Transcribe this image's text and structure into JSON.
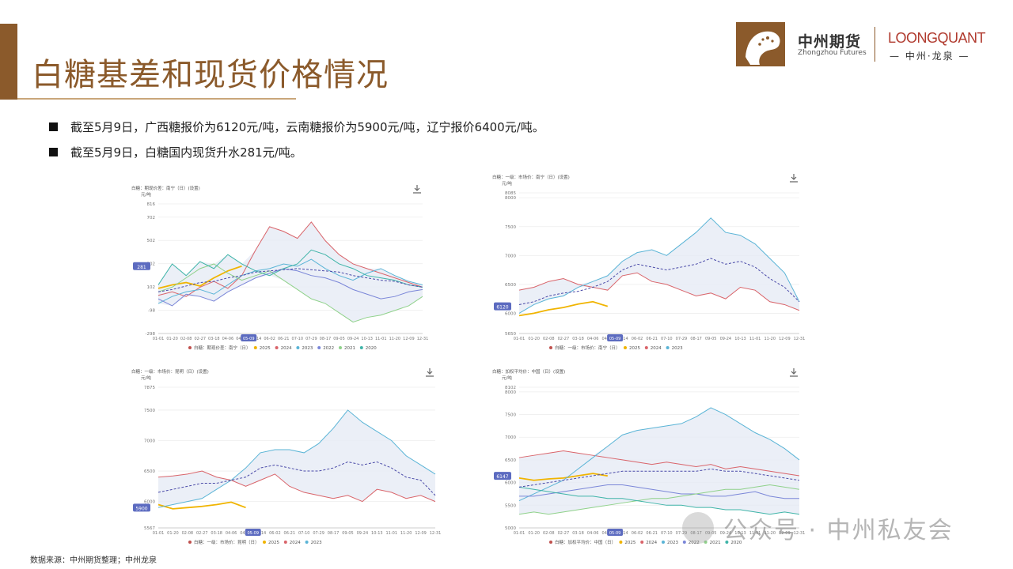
{
  "header": {
    "title": "白糖基差和现货价格情况",
    "logo_cn": "中州期货",
    "logo_en": "Zhongzhou Futures",
    "logo_lq": "LOONGQUANT",
    "logo_lq_sub": "— 中州·龙泉 —"
  },
  "bullets": [
    "截至5月9日，广西糖报价为6120元/吨，云南糖报价为5900元/吨，辽宁报价6400元/吨。",
    "截至5月9日，白糖国内现货升水281元/吨。"
  ],
  "source": "数据来源：中州期货整理；中州龙泉",
  "watermark": "公众号 · 中州私友会",
  "colors": {
    "brand": "#8b5a2b",
    "s2025": "#f0b400",
    "s2024": "#d9646a",
    "s2023": "#5ab4d6",
    "s2022": "#7a86d8",
    "s2021": "#8fd18a",
    "s2020": "#3fb4a8",
    "avg": "#4a4aa8",
    "band": "#e6ebf5"
  },
  "x_ticks": [
    "01-01",
    "01-20",
    "02-08",
    "02-27",
    "03-18",
    "04-06",
    "04-25",
    "05-14",
    "06-02",
    "06-21",
    "07-10",
    "07-29",
    "08-17",
    "09-05",
    "09-24",
    "10-13",
    "11-01",
    "11-20",
    "12-09",
    "12-31"
  ],
  "chart_data": [
    {
      "type": "line",
      "title": "白糖：期现价差：南宁（日）(设置)",
      "ylabel": "元/吨",
      "y_ticks": [
        816,
        702,
        502,
        302,
        102,
        -98,
        -298
      ],
      "ylim": [
        -298,
        816
      ],
      "marker_label": "281",
      "date_marker": "05-09",
      "legend": [
        "白糖：期现价差：南宁（日）",
        "2025",
        "2024",
        "2023",
        "2022",
        "2021",
        "2020"
      ],
      "series": [
        {
          "name": "2025",
          "color": "#f0b400",
          "values": [
            90,
            120,
            140,
            110,
            180,
            240,
            281
          ]
        },
        {
          "name": "2024",
          "color": "#d9646a",
          "values": [
            30,
            60,
            20,
            100,
            150,
            90,
            200,
            420,
            620,
            580,
            520,
            660,
            500,
            380,
            300,
            260,
            220,
            180,
            140,
            100
          ]
        },
        {
          "name": "2023",
          "color": "#5ab4d6",
          "values": [
            -40,
            20,
            60,
            80,
            40,
            120,
            200,
            240,
            260,
            300,
            280,
            340,
            260,
            200,
            160,
            220,
            260,
            200,
            150,
            120
          ]
        },
        {
          "name": "2022",
          "color": "#7a86d8",
          "values": [
            0,
            -60,
            40,
            20,
            -20,
            60,
            120,
            180,
            220,
            260,
            240,
            200,
            180,
            140,
            80,
            40,
            0,
            20,
            60,
            80
          ]
        },
        {
          "name": "2021",
          "color": "#8fd18a",
          "values": [
            60,
            100,
            180,
            260,
            300,
            220,
            160,
            200,
            240,
            160,
            80,
            0,
            -40,
            -120,
            -200,
            -160,
            -140,
            -100,
            -60,
            20
          ]
        },
        {
          "name": "2020",
          "color": "#3fb4a8",
          "values": [
            120,
            300,
            200,
            320,
            260,
            380,
            300,
            240,
            200,
            260,
            300,
            420,
            380,
            300,
            260,
            200,
            180,
            160,
            120,
            100
          ]
        },
        {
          "name": "avg",
          "color": "#4a4aa8",
          "values": [
            60,
            80,
            110,
            140,
            150,
            180,
            200,
            230,
            240,
            250,
            260,
            250,
            240,
            230,
            200,
            180,
            160,
            150,
            120,
            100
          ]
        }
      ]
    },
    {
      "type": "line",
      "title": "白糖：一级：市场价：南宁（日）(设置)",
      "ylabel": "元/吨",
      "y_ticks": [
        8085,
        8000,
        7500,
        7000,
        6500,
        6000,
        5650
      ],
      "ylim": [
        5650,
        8085
      ],
      "marker_label": "6120",
      "date_marker": "05-09",
      "legend": [
        "白糖：一级：市场价：南宁（日）",
        "2025",
        "2024",
        "2023"
      ],
      "series": [
        {
          "name": "2025",
          "color": "#f0b400",
          "values": [
            5960,
            6000,
            6060,
            6100,
            6160,
            6200,
            6120
          ]
        },
        {
          "name": "2024",
          "color": "#d9646a",
          "values": [
            6400,
            6450,
            6550,
            6600,
            6500,
            6450,
            6400,
            6650,
            6700,
            6550,
            6500,
            6400,
            6300,
            6350,
            6250,
            6450,
            6400,
            6200,
            6150,
            6050
          ]
        },
        {
          "name": "2023",
          "color": "#5ab4d6",
          "values": [
            6000,
            6150,
            6250,
            6300,
            6450,
            6550,
            6650,
            6900,
            7050,
            7100,
            7000,
            7200,
            7400,
            7650,
            7400,
            7350,
            7200,
            6950,
            6700,
            6200
          ]
        },
        {
          "name": "avg",
          "color": "#4a4aa8",
          "values": [
            6150,
            6200,
            6300,
            6350,
            6380,
            6450,
            6550,
            6750,
            6850,
            6800,
            6750,
            6800,
            6850,
            6950,
            6850,
            6900,
            6800,
            6600,
            6450,
            6200
          ]
        }
      ]
    },
    {
      "type": "line",
      "title": "白糖：一级：市场价：昆明（日）(设置)",
      "ylabel": "元/吨",
      "y_ticks": [
        7875,
        7500,
        7000,
        6500,
        6000,
        5567
      ],
      "ylim": [
        5567,
        7875
      ],
      "marker_label": "5900",
      "date_marker": "05-09",
      "legend": [
        "白糖：一级：市场价：昆明（日）",
        "2025",
        "2024",
        "2023"
      ],
      "series": [
        {
          "name": "2025",
          "color": "#f0b400",
          "values": [
            5950,
            5880,
            5900,
            5920,
            5950,
            5990,
            5900
          ]
        },
        {
          "name": "2024",
          "color": "#d9646a",
          "values": [
            6400,
            6420,
            6450,
            6500,
            6400,
            6350,
            6250,
            6350,
            6450,
            6250,
            6150,
            6100,
            6050,
            6100,
            6000,
            6200,
            6150,
            6050,
            6100,
            6000
          ]
        },
        {
          "name": "2023",
          "color": "#5ab4d6",
          "values": [
            5900,
            5950,
            6000,
            6050,
            6200,
            6350,
            6550,
            6800,
            6850,
            6850,
            6800,
            6950,
            7200,
            7500,
            7300,
            7150,
            7000,
            6750,
            6600,
            6450
          ]
        },
        {
          "name": "avg",
          "color": "#4a4aa8",
          "values": [
            6150,
            6200,
            6250,
            6300,
            6300,
            6350,
            6400,
            6550,
            6600,
            6550,
            6500,
            6500,
            6550,
            6650,
            6600,
            6650,
            6550,
            6400,
            6350,
            6100
          ]
        }
      ]
    },
    {
      "type": "line",
      "title": "白糖：加权平均价：中国（日）(设置)",
      "ylabel": "元/吨",
      "y_ticks": [
        8102,
        8000,
        7500,
        7000,
        6500,
        6000,
        5500,
        5000
      ],
      "ylim": [
        5000,
        8102
      ],
      "marker_label": "6147",
      "date_marker": "05-09",
      "legend": [
        "白糖：加权平均价：中国（日）",
        "2025",
        "2024",
        "2023",
        "2022",
        "2021",
        "2020"
      ],
      "series": [
        {
          "name": "2025",
          "color": "#f0b400",
          "values": [
            6100,
            6050,
            6080,
            6100,
            6150,
            6200,
            6147
          ]
        },
        {
          "name": "2024",
          "color": "#d9646a",
          "values": [
            6550,
            6600,
            6650,
            6700,
            6650,
            6600,
            6550,
            6500,
            6450,
            6400,
            6450,
            6400,
            6350,
            6400,
            6300,
            6350,
            6300,
            6250,
            6200,
            6150
          ]
        },
        {
          "name": "2023",
          "color": "#5ab4d6",
          "values": [
            5600,
            5750,
            5900,
            6050,
            6300,
            6550,
            6800,
            7050,
            7150,
            7200,
            7250,
            7300,
            7450,
            7650,
            7500,
            7300,
            7100,
            6950,
            6750,
            6500
          ]
        },
        {
          "name": "2022",
          "color": "#7a86d8",
          "values": [
            5700,
            5700,
            5750,
            5800,
            5850,
            5900,
            5950,
            5950,
            5900,
            5850,
            5800,
            5750,
            5750,
            5700,
            5700,
            5750,
            5800,
            5700,
            5650,
            5650
          ]
        },
        {
          "name": "2021",
          "color": "#8fd18a",
          "values": [
            5300,
            5350,
            5300,
            5350,
            5400,
            5450,
            5500,
            5550,
            5600,
            5650,
            5650,
            5700,
            5750,
            5800,
            5850,
            5850,
            5900,
            5950,
            5900,
            5850
          ]
        },
        {
          "name": "2020",
          "color": "#3fb4a8",
          "values": [
            5900,
            5850,
            5800,
            5750,
            5700,
            5700,
            5650,
            5650,
            5600,
            5550,
            5500,
            5500,
            5450,
            5450,
            5400,
            5400,
            5350,
            5300,
            5350,
            5300
          ]
        },
        {
          "name": "avg",
          "color": "#4a4aa8",
          "values": [
            5900,
            5950,
            6000,
            6050,
            6100,
            6150,
            6200,
            6250,
            6250,
            6250,
            6250,
            6250,
            6250,
            6300,
            6250,
            6250,
            6200,
            6150,
            6100,
            6050
          ]
        }
      ]
    }
  ]
}
